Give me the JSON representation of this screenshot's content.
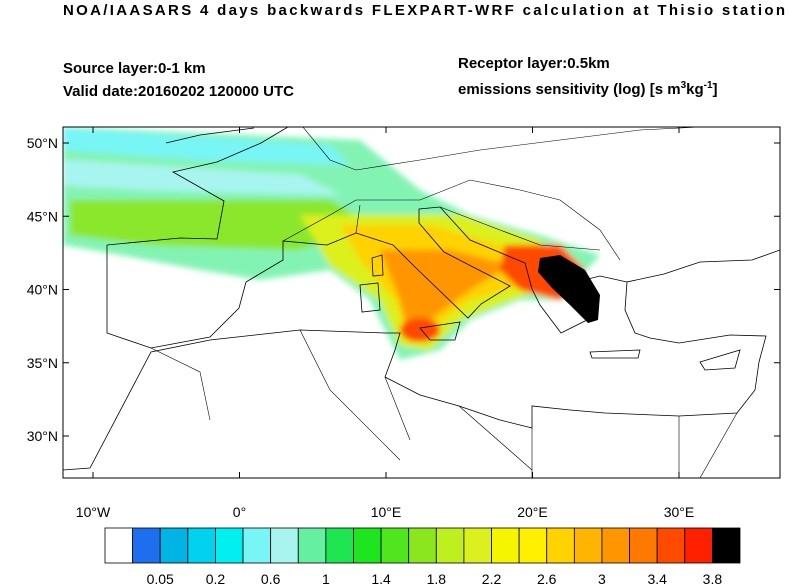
{
  "header": {
    "title": "NOA/IAASARS 4 days backwards FLEXPART-WRF calculation at Thisio station",
    "source_layer": "Source layer:0-1 km",
    "valid_date": "Valid date:20160202 120000 UTC",
    "receptor_layer": "Receptor layer:0.5km",
    "units": [
      "emissions sensitivity (log) [s m",
      "3",
      "kg",
      "-1",
      "]"
    ]
  },
  "map": {
    "lat_labels": [
      "50°N",
      "45°N",
      "40°N",
      "35°N",
      "30°N"
    ],
    "lon_labels": [
      "10°W",
      "0°",
      "10°E",
      "20°E",
      "30°E"
    ]
  },
  "colorbar": {
    "colors": [
      "#ffffff",
      "#1e6ef0",
      "#00b4e6",
      "#00d2f0",
      "#00f0f0",
      "#78f5f5",
      "#a8f5f0",
      "#64f0a0",
      "#1ee650",
      "#1ee61e",
      "#50e61e",
      "#8ce61e",
      "#bef01e",
      "#dcf01e",
      "#f5f500",
      "#fff000",
      "#ffd200",
      "#ffb400",
      "#ff9600",
      "#ff7800",
      "#ff4a00",
      "#ff2000",
      "#000000"
    ],
    "labels": [
      "0.05",
      "0.2",
      "0.6",
      "1",
      "1.4",
      "1.8",
      "2.2",
      "2.6",
      "3",
      "3.4",
      "3.8"
    ]
  }
}
